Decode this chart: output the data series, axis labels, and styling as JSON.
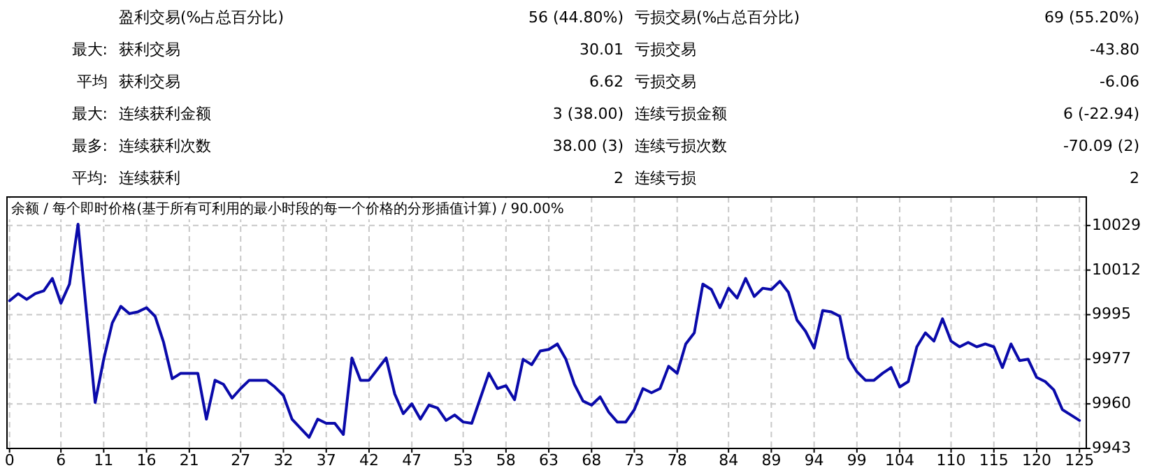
{
  "chart_data": {
    "type": "line",
    "title": "余额 / 每个即时价格(基于所有可利用的最小时段的每一个价格的分形插值计算) / 90.00%",
    "annotations": [
      "盈利交易(%占总百分比)",
      "56 (44.80%)",
      "亏损交易(%占总百分比)",
      "69 (55.20%)",
      "最大:",
      "获利交易",
      "30.01",
      "亏损交易",
      "-43.80",
      "平均",
      "获利交易",
      "6.62",
      "亏损交易",
      "-6.06",
      "最大:",
      "连续获利金额",
      "3 (38.00)",
      "连续亏损金额",
      "6 (-22.94)",
      "最多:",
      "连续获利次数",
      "38.00 (3)",
      "连续亏损次数",
      "-70.09 (2)",
      "平均:",
      "连续获利",
      "2",
      "连续亏损",
      "2"
    ],
    "x": [
      0,
      1,
      2,
      3,
      4,
      5,
      6,
      7,
      8,
      10,
      11,
      12,
      13,
      14,
      15,
      16,
      17,
      18,
      19,
      20,
      22,
      23,
      24,
      25,
      26,
      27,
      28,
      30,
      31,
      32,
      33,
      35,
      36,
      37,
      38,
      39,
      40,
      41,
      42,
      44,
      45,
      46,
      47,
      48,
      49,
      50,
      51,
      52,
      53,
      54,
      56,
      57,
      58,
      59,
      60,
      61,
      62,
      63,
      64,
      65,
      66,
      67,
      68,
      69,
      70,
      71,
      72,
      73,
      74,
      75,
      76,
      77,
      78,
      79,
      80,
      81,
      82,
      83,
      84,
      85,
      86,
      87,
      88,
      89,
      90,
      91,
      92,
      93,
      94,
      95,
      96,
      97,
      98,
      99,
      100,
      101,
      102,
      103,
      104,
      105,
      106,
      107,
      108,
      109,
      110,
      111,
      112,
      113,
      114,
      115,
      116,
      117,
      118,
      119,
      120,
      121,
      122,
      123,
      124,
      125
    ],
    "series": [
      {
        "color": "#0a0aaa",
        "values": [
          10000,
          10002.7,
          10000.5,
          10002.7,
          10003.8,
          10008.6,
          9999,
          10006.4,
          10029.5,
          9960.7,
          9977.4,
          9991.4,
          9997.8,
          9995,
          9995.7,
          9997.3,
          9994,
          9983.9,
          9969.9,
          9972,
          9972,
          9954.3,
          9969.3,
          9967.7,
          9962.4,
          9966.1,
          9969.3,
          9969.3,
          9966.7,
          9963.4,
          9954.3,
          9947.3,
          9954.3,
          9952.7,
          9952.7,
          9948.4,
          9977.9,
          9969.3,
          9969.3,
          9977.9,
          9964,
          9956.4,
          9960.2,
          9954.3,
          9959.7,
          9958.6,
          9953.8,
          9955.9,
          9953.2,
          9952.7,
          9972,
          9966.1,
          9967.2,
          9961.8,
          9977.4,
          9975.3,
          9980.6,
          9981.2,
          9983.3,
          9977.4,
          9967.7,
          9961.3,
          9959.7,
          9962.9,
          9957,
          9953.2,
          9953.2,
          9958,
          9966.1,
          9964.5,
          9966.1,
          9974.7,
          9972,
          9983.3,
          9987.6,
          10006.4,
          10004.3,
          9997.3,
          10004.8,
          10001,
          10008.6,
          10001.6,
          10004.8,
          10004.3,
          10007.5,
          10003.2,
          9992.5,
          9988.2,
          9981.7,
          9996.2,
          9995.7,
          9994,
          9977.9,
          9972.6,
          9969.3,
          9969.3,
          9972,
          9974.2,
          9966.7,
          9968.8,
          9982.2,
          9987.6,
          9984.4,
          9993,
          9984.4,
          9982.2,
          9983.9,
          9982.2,
          9983.3,
          9982.2,
          9974.2,
          9983.3,
          9976.9,
          9977.4,
          9970.4,
          9968.8,
          9965.6,
          9958,
          9955.9,
          9953.8
        ]
      }
    ],
    "xlim": [
      -0.3,
      125.8
    ],
    "ylim": [
      9943,
      10040
    ],
    "xticks": [
      0,
      6,
      11,
      16,
      21,
      27,
      32,
      37,
      42,
      47,
      53,
      58,
      63,
      68,
      73,
      78,
      84,
      89,
      94,
      99,
      104,
      110,
      115,
      120,
      125
    ],
    "yticks": [
      9943,
      {
        "value": 9960.2,
        "label": "9960"
      },
      {
        "value": 9977.4,
        "label": "9977"
      },
      {
        "value": 9994.6,
        "label": "9995"
      },
      {
        "value": 10011.8,
        "label": "10012"
      },
      10029
    ],
    "grid": true,
    "marker": "none",
    "line_style": "solid"
  }
}
